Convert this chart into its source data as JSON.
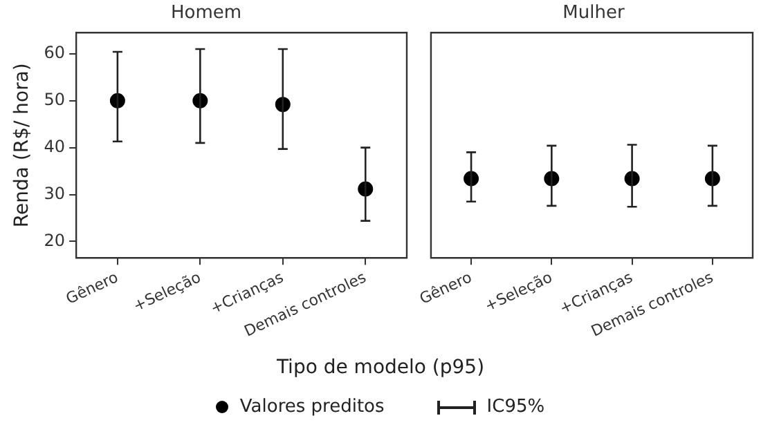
{
  "chart_data": [
    {
      "type": "scatter",
      "title": "Homem",
      "ylabel": "Renda (R$/ hora)",
      "xlabel": "Tipo de modelo (p95)",
      "categories": [
        "Gênero",
        "+Seleção",
        "+Crianças",
        "Demais controles"
      ],
      "ylim": [
        16.5,
        64.5
      ],
      "yticks": [
        20,
        30,
        40,
        50,
        60
      ],
      "marker": "circle",
      "legend": "bottom",
      "annotations": [
        "IC95%"
      ],
      "series": [
        {
          "name": "Valores preditos",
          "color": "#000000",
          "values": [
            50,
            50,
            49.2,
            31.2
          ],
          "errors": [
            [
              41.3,
              60.4
            ],
            [
              41,
              61
            ],
            [
              39.7,
              61
            ],
            [
              24.4,
              40
            ]
          ]
        }
      ]
    },
    {
      "type": "scatter",
      "title": "Mulher",
      "categories": [
        "Gênero",
        "+Seleção",
        "+Crianças",
        "Demais controles"
      ],
      "ylim": [
        16.5,
        64.5
      ],
      "tick_labels": "x",
      "marker": "circle",
      "series": [
        {
          "color": "#000000",
          "values": [
            33.4,
            33.4,
            33.4,
            33.4
          ],
          "errors": [
            [
              28.5,
              39
            ],
            [
              27.6,
              40.4
            ],
            [
              27.4,
              40.6
            ],
            [
              27.6,
              40.4
            ]
          ]
        }
      ]
    }
  ]
}
